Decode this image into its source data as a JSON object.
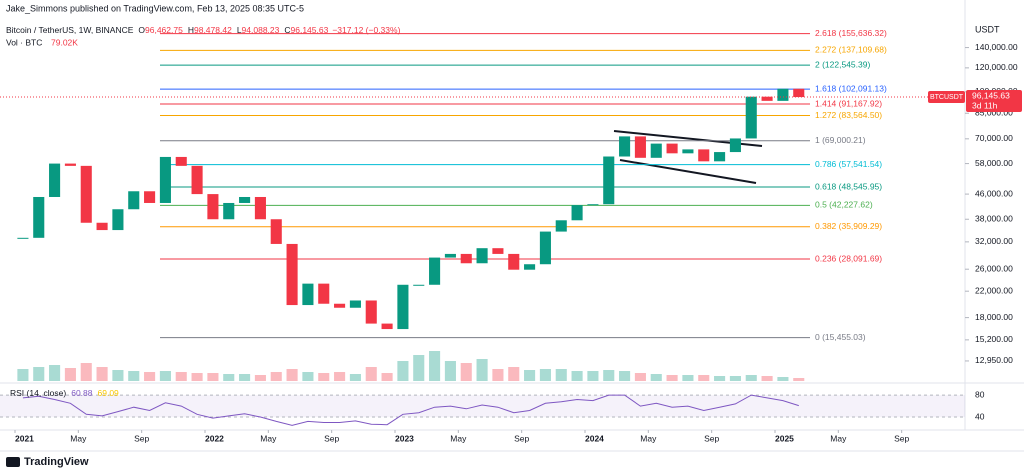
{
  "header": {
    "publisher": "Jake_Simmons published on TradingView.com, Feb 13, 2025 08:35 UTC-5",
    "symbol": "Bitcoin / TetherUS, 1W, BINANCE",
    "ohlc": [
      {
        "key": "O",
        "value": "96,462.75"
      },
      {
        "key": "H",
        "value": "98,478.42"
      },
      {
        "key": "L",
        "value": "94,088.23"
      },
      {
        "key": "C",
        "value": "96,145.63"
      }
    ],
    "change": "−317.12 (−0.33%)",
    "volume_label": "Vol · BTC",
    "volume_value": "79.02K"
  },
  "chart_data": {
    "type": "candlestick",
    "x": [
      "2021-01",
      "2021-02",
      "2021-03",
      "2021-04",
      "2021-05",
      "2021-06",
      "2021-07",
      "2021-08",
      "2021-09",
      "2021-10",
      "2021-11",
      "2021-12",
      "2022-01",
      "2022-02",
      "2022-03",
      "2022-04",
      "2022-05",
      "2022-06",
      "2022-07",
      "2022-08",
      "2022-09",
      "2022-10",
      "2022-11",
      "2022-12",
      "2023-01",
      "2023-02",
      "2023-03",
      "2023-04",
      "2023-05",
      "2023-06",
      "2023-07",
      "2023-08",
      "2023-09",
      "2023-10",
      "2023-11",
      "2023-12",
      "2024-01",
      "2024-02",
      "2024-03",
      "2024-04",
      "2024-05",
      "2024-06",
      "2024-07",
      "2024-08",
      "2024-09",
      "2024-10",
      "2024-11",
      "2024-12",
      "2025-01",
      "2025-02"
    ],
    "values": [
      33000,
      45000,
      58000,
      57000,
      37000,
      35000,
      41000,
      47000,
      43000,
      61000,
      57000,
      46000,
      38000,
      43000,
      45000,
      38000,
      31500,
      19800,
      23300,
      20000,
      19400,
      20500,
      17200,
      16500,
      23100,
      23100,
      28400,
      29200,
      27200,
      30500,
      29200,
      25900,
      27000,
      34600,
      37700,
      42300,
      42600,
      61200,
      71300,
      60600,
      67500,
      62700,
      64600,
      59000,
      63300,
      70200,
      96400,
      93400,
      102400,
      96145.63
    ],
    "volumes": [
      60,
      70,
      80,
      65,
      90,
      70,
      55,
      50,
      45,
      50,
      45,
      40,
      40,
      35,
      35,
      30,
      45,
      60,
      45,
      40,
      45,
      35,
      70,
      40,
      100,
      130,
      150,
      100,
      90,
      110,
      60,
      70,
      55,
      60,
      60,
      50,
      50,
      55,
      50,
      40,
      35,
      30,
      30,
      30,
      25,
      25,
      30,
      25,
      20,
      15
    ],
    "volume_ylim": [
      0,
      160
    ],
    "ylim": [
      12090,
      160000
    ],
    "log_scale": true,
    "y_unit": "USDT",
    "yticks": [
      {
        "value": 140000,
        "label": "140,000.00"
      },
      {
        "value": 120000,
        "label": "120,000.00"
      },
      {
        "value": 100000,
        "label": "100,000.00"
      },
      {
        "value": 85000,
        "label": "85,000.00"
      },
      {
        "value": 70000,
        "label": "70,000.00"
      },
      {
        "value": 58000,
        "label": "58,000.00"
      },
      {
        "value": 46000,
        "label": "46,000.00"
      },
      {
        "value": 38000,
        "label": "38,000.00"
      },
      {
        "value": 32000,
        "label": "32,000.00"
      },
      {
        "value": 26000,
        "label": "26,000.00"
      },
      {
        "value": 22000,
        "label": "22,000.00"
      },
      {
        "value": 18000,
        "label": "18,000.00"
      },
      {
        "value": 15200,
        "label": "15,200.00"
      },
      {
        "value": 12950,
        "label": "12,950.00"
      }
    ],
    "xticks": [
      {
        "value": "2021-01",
        "label": "2021"
      },
      {
        "value": "2021-05",
        "label": "May"
      },
      {
        "value": "2021-09",
        "label": "Sep"
      },
      {
        "value": "2022-01",
        "label": "2022"
      },
      {
        "value": "2022-05",
        "label": "May"
      },
      {
        "value": "2022-09",
        "label": "Sep"
      },
      {
        "value": "2023-01",
        "label": "2023"
      },
      {
        "value": "2023-05",
        "label": "May"
      },
      {
        "value": "2023-09",
        "label": "Sep"
      },
      {
        "value": "2024-01",
        "label": "2024"
      },
      {
        "value": "2024-05",
        "label": "May"
      },
      {
        "value": "2024-09",
        "label": "Sep"
      },
      {
        "value": "2025-01",
        "label": "2025"
      },
      {
        "value": "2025-05",
        "label": "May"
      },
      {
        "value": "2025-09",
        "label": "Sep"
      }
    ],
    "colors": {
      "up": "#089981",
      "down": "#f23645"
    },
    "fib_levels": [
      {
        "label": "2.618 (155,636.32)",
        "value": 155636.32,
        "color": "#f23645"
      },
      {
        "label": "2.272 (137,109.68)",
        "value": 137109.68,
        "color": "#f7a600"
      },
      {
        "label": "2 (122,545.39)",
        "value": 122545.39,
        "color": "#089981"
      },
      {
        "label": "1.618 (102,091.13)",
        "value": 102091.13,
        "color": "#2962ff"
      },
      {
        "label": "1.414 (91,167.92)",
        "value": 91167.92,
        "color": "#f23645"
      },
      {
        "label": "1.272 (83,564.50)",
        "value": 83564.5,
        "color": "#f7a600"
      },
      {
        "label": "1 (69,000.21)",
        "value": 69000.21,
        "color": "#787b86"
      },
      {
        "label": "0.786 (57,541.54)",
        "value": 57541.54,
        "color": "#00bcd4"
      },
      {
        "label": "0.618 (48,545.95)",
        "value": 48545.95,
        "color": "#089981"
      },
      {
        "label": "0.5 (42,227.62)",
        "value": 42227.62,
        "color": "#4caf50"
      },
      {
        "label": "0.382 (35,909.29)",
        "value": 35909.29,
        "color": "#ff9800"
      },
      {
        "label": "0.236 (28,091.69)",
        "value": 28091.69,
        "color": "#f23645"
      },
      {
        "label": "0 (15,455.03)",
        "value": 15455.03,
        "color": "#787b86"
      }
    ],
    "last_price": {
      "symbol": "BTCUSDT",
      "label": "96,145.63",
      "countdown": "3d 11h"
    },
    "rsi": {
      "title": "RSI (14, close)",
      "value": "60.88",
      "ma": "69.09",
      "color": "#7e57c2",
      "values": [
        75,
        78,
        72,
        65,
        45,
        42,
        50,
        58,
        52,
        66,
        60,
        45,
        38,
        42,
        46,
        40,
        32,
        25,
        32,
        30,
        30,
        33,
        27,
        26,
        45,
        48,
        58,
        60,
        55,
        62,
        58,
        48,
        52,
        65,
        68,
        72,
        70,
        80,
        80,
        60,
        65,
        58,
        60,
        52,
        58,
        64,
        80,
        75,
        70,
        60.88
      ],
      "ylim": [
        20,
        93
      ],
      "yticks": [
        80,
        40
      ]
    }
  },
  "footer": {
    "brand": "TradingView"
  }
}
